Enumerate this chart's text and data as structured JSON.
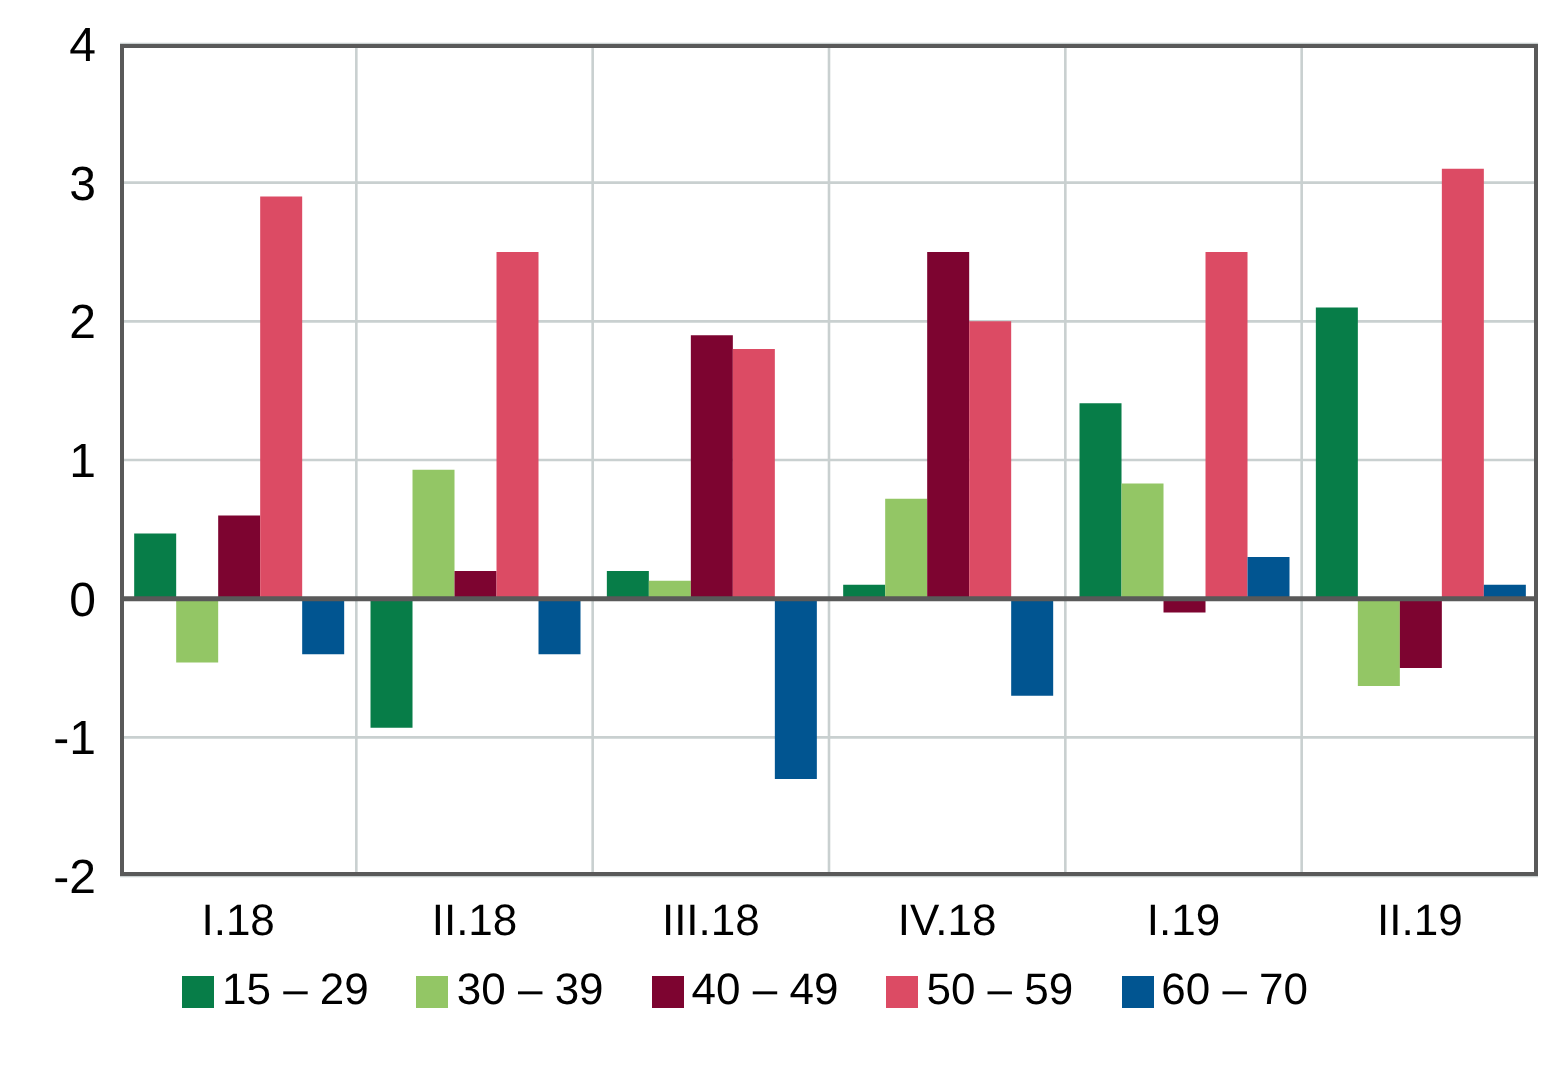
{
  "chart_data": {
    "type": "bar",
    "categories": [
      "I.18",
      "II.18",
      "III.18",
      "IV.18",
      "I.19",
      "II.19"
    ],
    "series": [
      {
        "name": "15 – 29",
        "color": "#077d48",
        "values": [
          0.47,
          -0.93,
          0.2,
          0.1,
          1.41,
          2.1
        ]
      },
      {
        "name": "30 – 39",
        "color": "#93c665",
        "values": [
          -0.46,
          0.93,
          0.13,
          0.72,
          0.83,
          -0.63
        ]
      },
      {
        "name": "40 – 49",
        "color": "#7d0430",
        "values": [
          0.6,
          0.2,
          1.9,
          2.5,
          -0.1,
          -0.5
        ]
      },
      {
        "name": "50 – 59",
        "color": "#dc4b64",
        "values": [
          2.9,
          2.5,
          1.8,
          2.0,
          2.5,
          3.1
        ]
      },
      {
        "name": "60 – 70",
        "color": "#015591",
        "values": [
          -0.4,
          -0.4,
          -1.3,
          -0.7,
          0.3,
          0.1
        ]
      }
    ],
    "ylim": [
      -2,
      4
    ],
    "yticks": [
      -2,
      -1,
      0,
      1,
      2,
      3,
      4
    ],
    "grid": true,
    "legend": "bottom",
    "ref_lines": [
      {
        "axis": "y",
        "value": 0,
        "color": "#595959"
      }
    ]
  }
}
